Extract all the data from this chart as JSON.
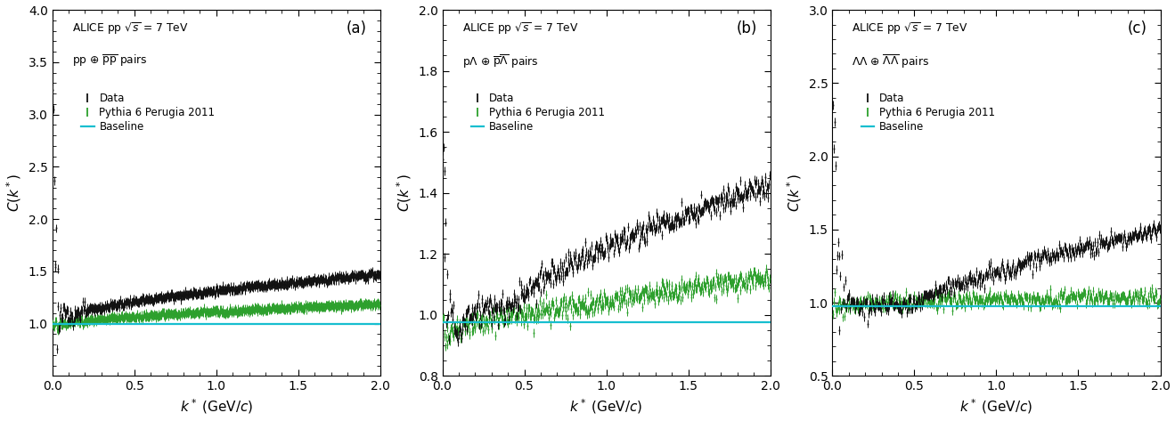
{
  "panels": [
    {
      "label": "(a)",
      "title_line1": "ALICE pp $\\sqrt{s}$ = 7 TeV",
      "title_line2": "pp $\\oplus$ $\\overline{\\mathrm{p}}\\overline{\\mathrm{p}}$ pairs",
      "ylabel": "$C(k^*)$",
      "xlabel": "$k^*$ (GeV/$c$)",
      "ylim": [
        0.5,
        4.0
      ],
      "yticks": [
        1.0,
        1.5,
        2.0,
        2.5,
        3.0,
        3.5,
        4.0
      ],
      "xlim": [
        0.0,
        2.0
      ],
      "xticks": [
        0.0,
        0.5,
        1.0,
        1.5,
        2.0
      ],
      "data_color": "#111111",
      "pythia_color": "#2ca02c",
      "baseline_color": "#17becf"
    },
    {
      "label": "(b)",
      "title_line1": "ALICE pp $\\sqrt{s}$ = 7 TeV",
      "title_line2": "p$\\Lambda$ $\\oplus$ $\\overline{\\mathrm{p}}\\overline{\\Lambda}$ pairs",
      "ylabel": "$C(k^*)$",
      "xlabel": "$k^*$ (GeV/$c$)",
      "ylim": [
        0.8,
        2.0
      ],
      "yticks": [
        0.8,
        1.0,
        1.2,
        1.4,
        1.6,
        1.8,
        2.0
      ],
      "xlim": [
        0.0,
        2.0
      ],
      "xticks": [
        0.0,
        0.5,
        1.0,
        1.5,
        2.0
      ],
      "data_color": "#111111",
      "pythia_color": "#2ca02c",
      "baseline_color": "#17becf"
    },
    {
      "label": "(c)",
      "title_line1": "ALICE pp $\\sqrt{s}$ = 7 TeV",
      "title_line2": "$\\Lambda\\Lambda$ $\\oplus$ $\\overline{\\Lambda}\\overline{\\Lambda}$ pairs",
      "ylabel": "$C(k^*)$",
      "xlabel": "$k^*$ (GeV/$c$)",
      "ylim": [
        0.5,
        3.0
      ],
      "yticks": [
        0.5,
        1.0,
        1.5,
        2.0,
        2.5,
        3.0
      ],
      "xlim": [
        0.0,
        2.0
      ],
      "xticks": [
        0.0,
        0.5,
        1.0,
        1.5,
        2.0
      ],
      "data_color": "#111111",
      "pythia_color": "#2ca02c",
      "baseline_color": "#17becf"
    }
  ],
  "legend_data": "Data",
  "legend_pythia": "Pythia 6 Perugia 2011",
  "legend_baseline": "Baseline"
}
